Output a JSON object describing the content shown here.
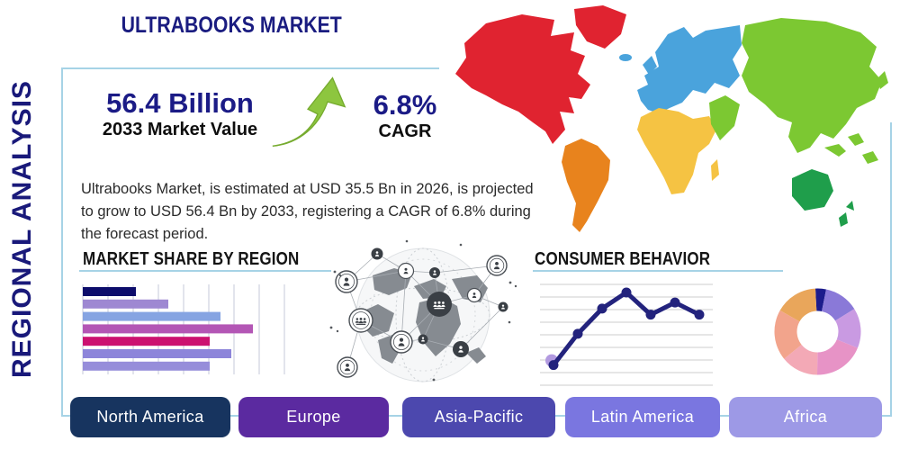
{
  "page": {
    "background": "#ffffff",
    "accent_border_color": "#a6d3e6"
  },
  "header": {
    "title": "ULTRABOOKS MARKET",
    "title_color": "#1a1c80"
  },
  "sidebar": {
    "vertical_label": "REGIONAL ANALYSIS"
  },
  "stats": {
    "market_value": "56.4 Billion",
    "market_value_caption": "2033 Market Value",
    "cagr_value": "6.8%",
    "cagr_caption": "CAGR",
    "arrow_color": "#8dc63f"
  },
  "description": "Ultrabooks Market, is estimated at USD 35.5 Bn in 2026, is projected to grow to USD 56.4 Bn by 2033, registering a CAGR of 6.8% during the forecast period.",
  "sections": {
    "market_share_heading": "MARKET SHARE BY REGION",
    "consumer_behavior_heading": "CONSUMER BEHAVIOR"
  },
  "region_buttons": [
    {
      "label": "North America",
      "color": "#17345f"
    },
    {
      "label": "Europe",
      "color": "#5b2aa0"
    },
    {
      "label": "Asia-Pacific",
      "color": "#4c48ae"
    },
    {
      "label": "Latin America",
      "color": "#7a76e0"
    },
    {
      "label": "Africa",
      "color": "#9d99e6"
    }
  ],
  "map": {
    "colors": {
      "north_america": "#e02330",
      "south_america": "#e8831d",
      "europe": "#4aa3dc",
      "africa": "#f5c343",
      "asia": "#7cc832",
      "middle_east": "#7cc832",
      "australia": "#1f9e4b"
    }
  },
  "chart_data": [
    {
      "type": "bar",
      "name": "market-share-by-region",
      "title": "MARKET SHARE BY REGION",
      "orientation": "horizontal",
      "categories": [
        "region-1",
        "region-2",
        "region-3",
        "region-4",
        "region-5",
        "region-6",
        "region-7"
      ],
      "values": [
        59,
        95,
        153,
        189,
        141,
        165,
        141
      ],
      "xlim": [
        0,
        240
      ],
      "grid": "vertical",
      "colors": [
        "#0d0d6b",
        "#9e88d2",
        "#86a4e2",
        "#b356b5",
        "#cc1170",
        "#8d85da",
        "#968dda"
      ],
      "note": "no axis labels shown; values are relative bar lengths"
    },
    {
      "type": "line",
      "name": "consumer-behavior",
      "title": "CONSUMER BEHAVIOR",
      "x": [
        1,
        2,
        3,
        4,
        5,
        6,
        7
      ],
      "values": [
        20,
        51,
        76,
        92,
        70,
        82,
        70
      ],
      "ylim": [
        0,
        100
      ],
      "grid": "horizontal",
      "line_color": "#23237d",
      "start_marker_color": "#b29ae0",
      "note": "no axis labels shown; values estimated from gridlines"
    },
    {
      "type": "pie",
      "name": "regional-distribution-donut",
      "donut": true,
      "start_angle": -93,
      "segments": [
        {
          "value": 4,
          "color": "#1c1c8c"
        },
        {
          "value": 13,
          "color": "#8a79d8"
        },
        {
          "value": 15,
          "color": "#c99ae2"
        },
        {
          "value": 19,
          "color": "#e793c6"
        },
        {
          "value": 14,
          "color": "#f3a9b6"
        },
        {
          "value": 19,
          "color": "#f2a48c"
        },
        {
          "value": 16,
          "color": "#e9a65b"
        }
      ],
      "note": "unlabeled donut; values estimated from arc angles"
    }
  ]
}
